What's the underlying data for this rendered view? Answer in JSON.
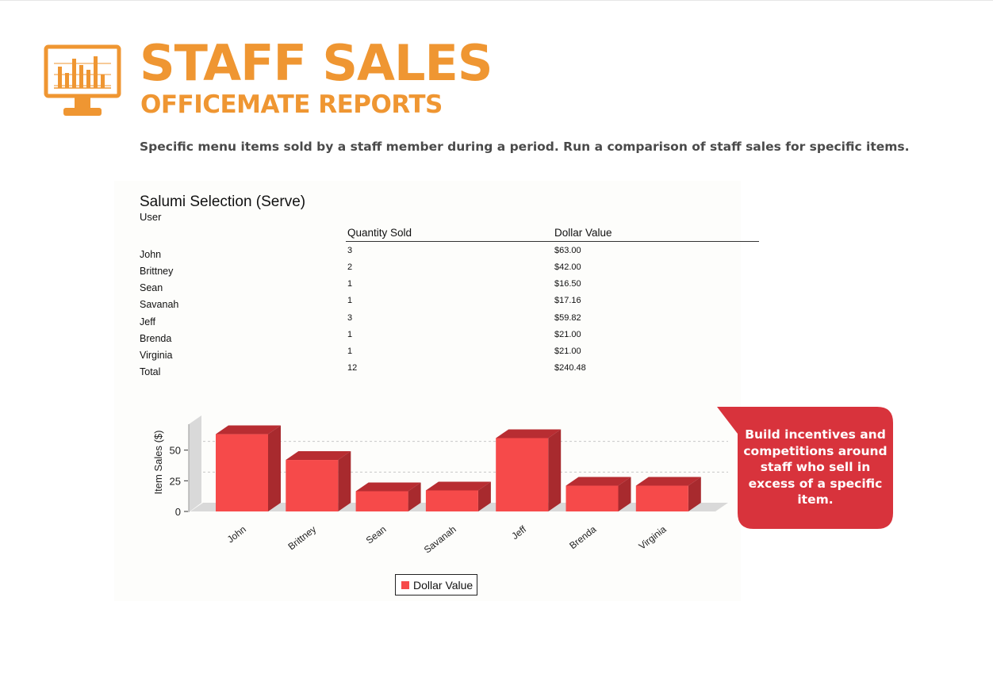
{
  "header": {
    "title": "STAFF SALES",
    "subtitle": "OFFICEMATE REPORTS",
    "description": "Specific menu items sold by a staff member during a period. Run a comparison of staff sales for specific items.",
    "logo_icon": "monitor-bar-chart-icon",
    "accent_color": "#ef9632"
  },
  "report": {
    "title": "Salumi Selection (Serve)",
    "columns": {
      "user": "User",
      "qty": "Quantity Sold",
      "dollar": "Dollar Value"
    },
    "rows": [
      {
        "name": "John",
        "qty": "3",
        "dollar": "$63.00"
      },
      {
        "name": "Brittney",
        "qty": "2",
        "dollar": "$42.00"
      },
      {
        "name": "Sean",
        "qty": "1",
        "dollar": "$16.50"
      },
      {
        "name": "Savanah",
        "qty": "1",
        "dollar": "$17.16"
      },
      {
        "name": "Jeff",
        "qty": "3",
        "dollar": "$59.82"
      },
      {
        "name": "Brenda",
        "qty": "1",
        "dollar": "$21.00"
      },
      {
        "name": "Virginia",
        "qty": "1",
        "dollar": "$21.00"
      },
      {
        "name": "Total",
        "qty": "12",
        "dollar": "$240.48"
      }
    ]
  },
  "chart_data": {
    "type": "bar",
    "categories": [
      "John",
      "Brittney",
      "Sean",
      "Savanah",
      "Jeff",
      "Brenda",
      "Virginia"
    ],
    "series": [
      {
        "name": "Dollar Value",
        "values": [
          63.0,
          42.0,
          16.5,
          17.16,
          59.82,
          21.0,
          21.0
        ],
        "color": "#f64a4a"
      }
    ],
    "ylabel": "Item Sales ($)",
    "yticks": [
      0,
      25,
      50
    ],
    "ylim": [
      0,
      75
    ],
    "grid": true,
    "legend": "bottom-center",
    "style": "3d"
  },
  "callout": {
    "text": "Build incentives and competitions around staff who sell in excess of a specific item.",
    "color": "#d8333c"
  }
}
